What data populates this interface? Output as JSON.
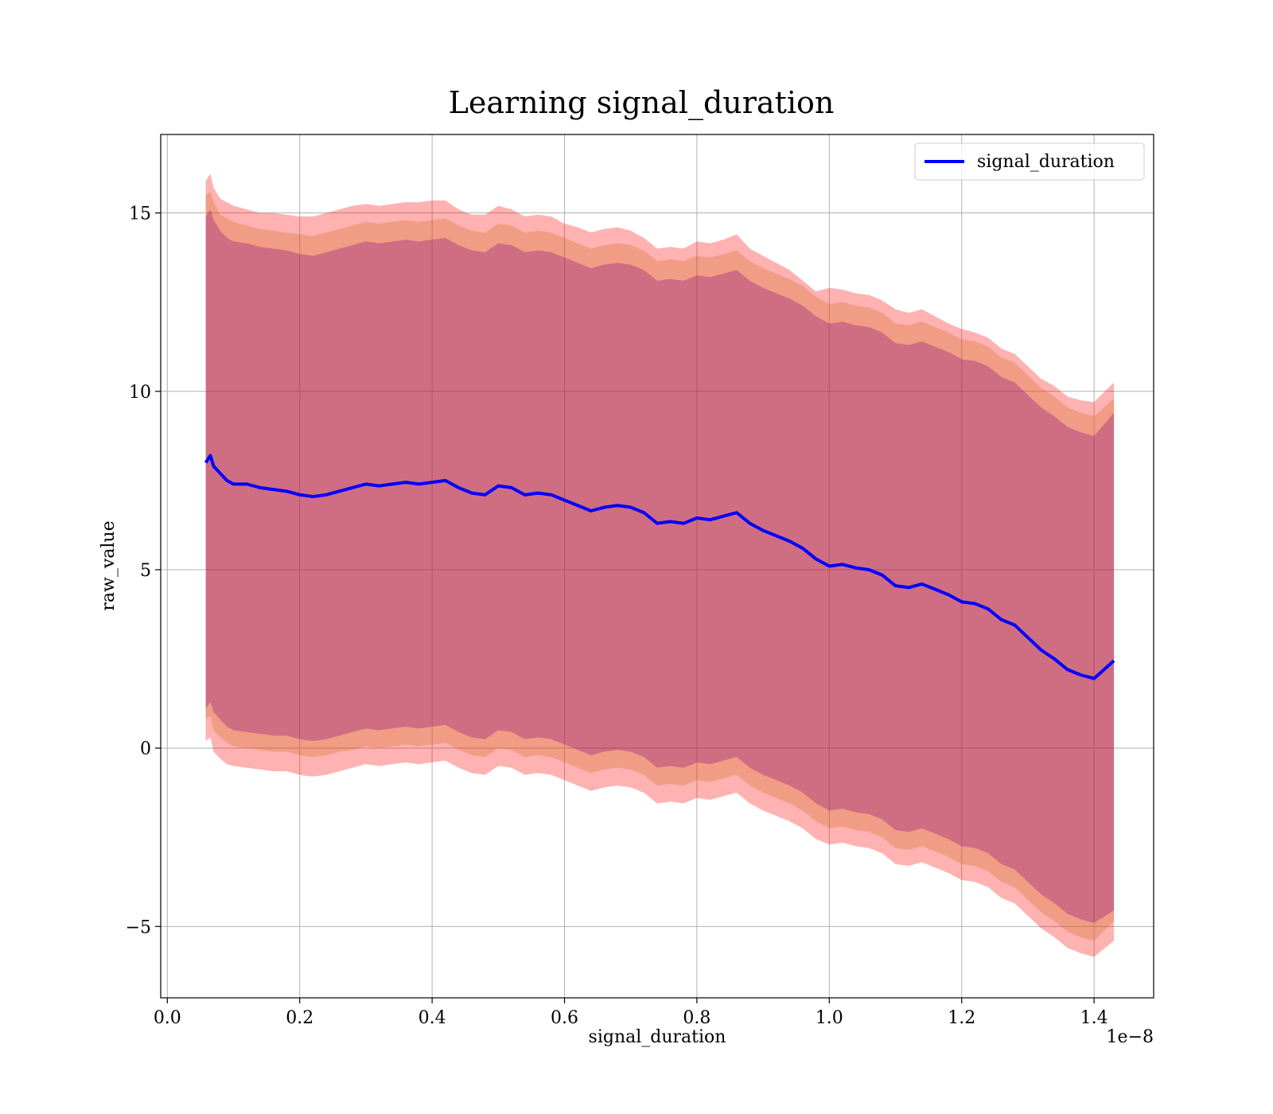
{
  "chart_data": {
    "type": "line",
    "title": "Learning signal_duration",
    "xlabel": "signal_duration",
    "ylabel": "raw_value",
    "x_offset_label": "1e−8",
    "xlim": [
      -0.01,
      1.49
    ],
    "ylim": [
      -7,
      17.2
    ],
    "x_ticks": [
      0.0,
      0.2,
      0.4,
      0.6,
      0.8,
      1.0,
      1.2,
      1.4
    ],
    "x_tick_labels": [
      "0.0",
      "0.2",
      "0.4",
      "0.6",
      "0.8",
      "1.0",
      "1.2",
      "1.4"
    ],
    "y_ticks": [
      -5,
      0,
      5,
      10,
      15
    ],
    "y_tick_labels": [
      "−5",
      "0",
      "5",
      "10",
      "15"
    ],
    "grid": true,
    "legend_position": "top-right",
    "colors": {
      "mean_line": "#0000ff",
      "band_outer": "#ff0000",
      "band_middle": "#d2691e",
      "band_inner": "#800080",
      "grid": "#b0b0b0"
    },
    "series": [
      {
        "name": "signal_duration",
        "x": [
          0.058,
          0.065,
          0.07,
          0.08,
          0.09,
          0.1,
          0.12,
          0.14,
          0.16,
          0.18,
          0.2,
          0.22,
          0.24,
          0.26,
          0.28,
          0.3,
          0.32,
          0.34,
          0.36,
          0.38,
          0.4,
          0.42,
          0.44,
          0.46,
          0.48,
          0.5,
          0.52,
          0.54,
          0.56,
          0.58,
          0.6,
          0.62,
          0.64,
          0.66,
          0.68,
          0.7,
          0.72,
          0.74,
          0.76,
          0.78,
          0.8,
          0.82,
          0.84,
          0.86,
          0.88,
          0.9,
          0.92,
          0.94,
          0.96,
          0.98,
          1.0,
          1.02,
          1.04,
          1.06,
          1.08,
          1.1,
          1.12,
          1.14,
          1.16,
          1.18,
          1.2,
          1.22,
          1.24,
          1.26,
          1.28,
          1.3,
          1.32,
          1.34,
          1.36,
          1.38,
          1.4,
          1.43
        ],
        "values": [
          8.0,
          8.2,
          7.9,
          7.7,
          7.5,
          7.4,
          7.4,
          7.3,
          7.25,
          7.2,
          7.1,
          7.05,
          7.1,
          7.2,
          7.3,
          7.4,
          7.35,
          7.4,
          7.45,
          7.4,
          7.45,
          7.5,
          7.3,
          7.15,
          7.1,
          7.35,
          7.3,
          7.1,
          7.15,
          7.1,
          6.95,
          6.8,
          6.65,
          6.75,
          6.8,
          6.75,
          6.6,
          6.3,
          6.35,
          6.3,
          6.45,
          6.4,
          6.5,
          6.6,
          6.3,
          6.1,
          5.95,
          5.8,
          5.6,
          5.3,
          5.1,
          5.15,
          5.05,
          5.0,
          4.85,
          4.55,
          4.5,
          4.6,
          4.45,
          4.3,
          4.1,
          4.05,
          3.9,
          3.6,
          3.45,
          3.1,
          2.75,
          2.5,
          2.2,
          2.05,
          1.95,
          2.45
        ]
      }
    ],
    "bands": {
      "outer_upper": [
        15.9,
        16.1,
        15.7,
        15.4,
        15.3,
        15.2,
        15.1,
        15.0,
        15.0,
        14.95,
        14.9,
        14.9,
        15.0,
        15.1,
        15.2,
        15.25,
        15.2,
        15.25,
        15.3,
        15.3,
        15.35,
        15.35,
        15.1,
        14.95,
        14.95,
        15.2,
        15.1,
        14.9,
        14.95,
        14.9,
        14.7,
        14.6,
        14.45,
        14.55,
        14.6,
        14.5,
        14.3,
        14.0,
        14.05,
        14.0,
        14.2,
        14.15,
        14.25,
        14.4,
        14.0,
        13.8,
        13.6,
        13.4,
        13.1,
        12.8,
        12.9,
        12.85,
        12.75,
        12.7,
        12.55,
        12.3,
        12.2,
        12.3,
        12.1,
        11.9,
        11.75,
        11.65,
        11.5,
        11.2,
        11.05,
        10.7,
        10.35,
        10.15,
        9.85,
        9.75,
        9.7,
        10.25
      ],
      "outer_lower": [
        0.2,
        0.3,
        -0.1,
        -0.3,
        -0.45,
        -0.5,
        -0.55,
        -0.6,
        -0.65,
        -0.65,
        -0.75,
        -0.8,
        -0.75,
        -0.65,
        -0.55,
        -0.45,
        -0.5,
        -0.45,
        -0.4,
        -0.45,
        -0.4,
        -0.35,
        -0.55,
        -0.7,
        -0.75,
        -0.5,
        -0.55,
        -0.75,
        -0.7,
        -0.75,
        -0.9,
        -1.05,
        -1.2,
        -1.1,
        -1.05,
        -1.1,
        -1.25,
        -1.55,
        -1.5,
        -1.55,
        -1.4,
        -1.45,
        -1.35,
        -1.25,
        -1.55,
        -1.75,
        -1.9,
        -2.05,
        -2.25,
        -2.55,
        -2.7,
        -2.65,
        -2.75,
        -2.8,
        -2.95,
        -3.25,
        -3.3,
        -3.2,
        -3.35,
        -3.5,
        -3.7,
        -3.75,
        -3.9,
        -4.2,
        -4.35,
        -4.7,
        -5.05,
        -5.3,
        -5.6,
        -5.75,
        -5.85,
        -5.4
      ],
      "middle_upper": [
        15.5,
        15.6,
        15.3,
        14.95,
        14.85,
        14.75,
        14.65,
        14.55,
        14.5,
        14.45,
        14.4,
        14.35,
        14.45,
        14.55,
        14.65,
        14.75,
        14.7,
        14.75,
        14.8,
        14.75,
        14.8,
        14.85,
        14.65,
        14.5,
        14.45,
        14.7,
        14.65,
        14.45,
        14.5,
        14.45,
        14.3,
        14.15,
        14.0,
        14.1,
        14.15,
        14.1,
        13.95,
        13.65,
        13.7,
        13.65,
        13.8,
        13.75,
        13.85,
        13.95,
        13.65,
        13.45,
        13.3,
        13.15,
        12.95,
        12.65,
        12.45,
        12.5,
        12.4,
        12.35,
        12.2,
        11.9,
        11.85,
        11.95,
        11.8,
        11.65,
        11.45,
        11.4,
        11.25,
        10.95,
        10.8,
        10.45,
        10.1,
        9.85,
        9.55,
        9.4,
        9.3,
        9.8
      ],
      "middle_lower": [
        0.8,
        0.9,
        0.5,
        0.3,
        0.15,
        0.05,
        0.0,
        -0.05,
        -0.1,
        -0.1,
        -0.2,
        -0.25,
        -0.2,
        -0.1,
        -0.05,
        0.05,
        0.0,
        0.05,
        0.1,
        0.05,
        0.1,
        0.15,
        -0.05,
        -0.2,
        -0.25,
        0.0,
        -0.05,
        -0.25,
        -0.2,
        -0.25,
        -0.4,
        -0.55,
        -0.7,
        -0.6,
        -0.55,
        -0.6,
        -0.75,
        -1.05,
        -1.0,
        -1.05,
        -0.9,
        -0.95,
        -0.85,
        -0.75,
        -1.05,
        -1.25,
        -1.4,
        -1.55,
        -1.75,
        -2.05,
        -2.25,
        -2.2,
        -2.3,
        -2.35,
        -2.5,
        -2.8,
        -2.85,
        -2.75,
        -2.9,
        -3.05,
        -3.25,
        -3.3,
        -3.45,
        -3.75,
        -3.9,
        -4.25,
        -4.6,
        -4.85,
        -5.15,
        -5.3,
        -5.4,
        -4.85
      ],
      "inner_upper": [
        14.9,
        15.1,
        14.8,
        14.5,
        14.3,
        14.2,
        14.15,
        14.05,
        14.0,
        13.95,
        13.85,
        13.8,
        13.9,
        14.0,
        14.1,
        14.2,
        14.15,
        14.2,
        14.25,
        14.2,
        14.25,
        14.3,
        14.1,
        13.95,
        13.9,
        14.15,
        14.1,
        13.9,
        13.95,
        13.9,
        13.75,
        13.6,
        13.45,
        13.55,
        13.6,
        13.55,
        13.4,
        13.1,
        13.15,
        13.1,
        13.25,
        13.2,
        13.3,
        13.4,
        13.1,
        12.9,
        12.75,
        12.6,
        12.4,
        12.1,
        11.9,
        11.95,
        11.85,
        11.8,
        11.65,
        11.35,
        11.3,
        11.4,
        11.25,
        11.1,
        10.9,
        10.85,
        10.7,
        10.4,
        10.25,
        9.9,
        9.55,
        9.3,
        9.0,
        8.85,
        8.75,
        9.4
      ],
      "inner_lower": [
        1.1,
        1.3,
        1.0,
        0.8,
        0.6,
        0.5,
        0.45,
        0.4,
        0.35,
        0.35,
        0.25,
        0.2,
        0.25,
        0.35,
        0.45,
        0.55,
        0.5,
        0.55,
        0.6,
        0.55,
        0.6,
        0.65,
        0.45,
        0.3,
        0.25,
        0.5,
        0.45,
        0.25,
        0.3,
        0.25,
        0.1,
        -0.05,
        -0.2,
        -0.1,
        -0.05,
        -0.1,
        -0.25,
        -0.55,
        -0.5,
        -0.55,
        -0.4,
        -0.45,
        -0.35,
        -0.25,
        -0.55,
        -0.75,
        -0.9,
        -1.05,
        -1.25,
        -1.55,
        -1.75,
        -1.7,
        -1.8,
        -1.85,
        -2.0,
        -2.3,
        -2.35,
        -2.25,
        -2.4,
        -2.55,
        -2.75,
        -2.8,
        -2.95,
        -3.25,
        -3.4,
        -3.75,
        -4.1,
        -4.35,
        -4.65,
        -4.8,
        -4.9,
        -4.55
      ]
    }
  }
}
